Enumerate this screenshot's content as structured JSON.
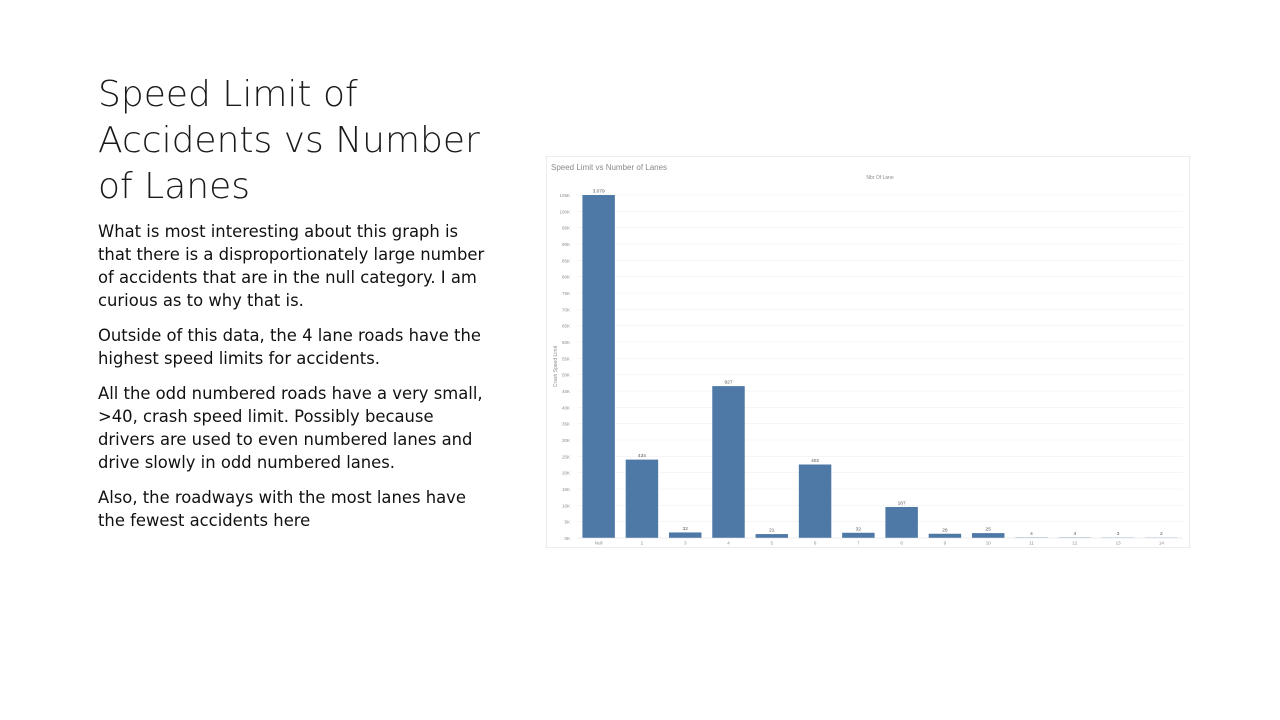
{
  "slide": {
    "title": "Speed Limit of Accidents vs Number of Lanes",
    "paragraphs": [
      "What is most interesting about this graph is that there is a disproportionately large number of accidents that are in the null category. I am curious as to why that is.",
      "Outside of this data, the 4 lane roads have the highest speed limits for accidents.",
      "All the odd numbered roads have a very small, >40, crash speed limit. Possibly because drivers are used to even numbered lanes and drive slowly in odd numbered lanes.",
      "Also, the roadways with the most lanes have the fewest accidents here"
    ]
  },
  "colors": {
    "bar": "#4e79a7",
    "gridline": "#f0f0f0",
    "axis_text": "#8c8c8c"
  },
  "chart_data": {
    "type": "bar",
    "title": "Speed Limit vs Number of Lanes",
    "header": "Nbr Of Lane",
    "ylabel": "Crash Speed Limit",
    "categories": [
      "Null",
      "2",
      "3",
      "4",
      "5",
      "6",
      "7",
      "8",
      "9",
      "10",
      "11",
      "12",
      "13",
      "14"
    ],
    "values": [
      105000,
      24000,
      1700,
      46500,
      1200,
      22500,
      1600,
      9500,
      1300,
      1500,
      150,
      150,
      120,
      100
    ],
    "data_labels": [
      "3,079",
      "434",
      "32",
      "927",
      "21",
      "402",
      "32",
      "187",
      "26",
      "25",
      "4",
      "4",
      "3",
      "2"
    ],
    "yticks": [
      "0K",
      "5K",
      "10K",
      "15K",
      "20K",
      "25K",
      "30K",
      "35K",
      "40K",
      "45K",
      "50K",
      "55K",
      "60K",
      "65K",
      "70K",
      "75K",
      "80K",
      "85K",
      "90K",
      "95K",
      "100K",
      "105K"
    ],
    "ylim": [
      0,
      105000
    ],
    "grid": true,
    "legend": "none"
  }
}
